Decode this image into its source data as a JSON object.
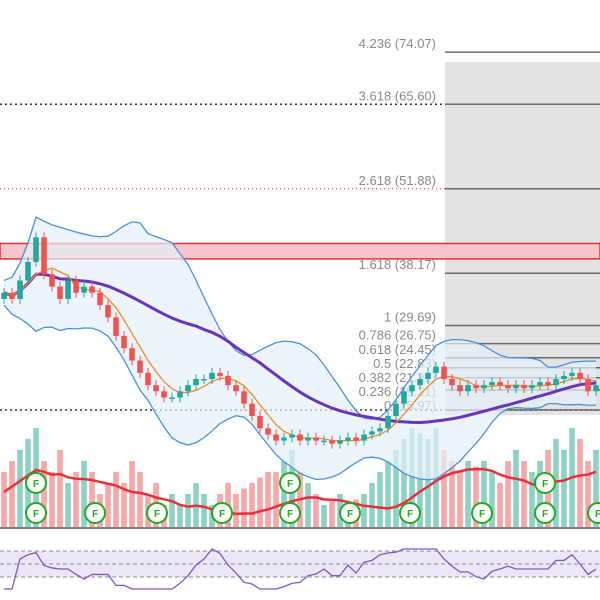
{
  "chart_data": {
    "type": "candlestick",
    "title": "",
    "fib_levels": [
      {
        "ratio": "4.236",
        "price": 74.07,
        "label": "4.236 (74.07)"
      },
      {
        "ratio": "3.618",
        "price": 65.6,
        "label": "3.618 (65.60)"
      },
      {
        "ratio": "2.618",
        "price": 51.88,
        "label": "2.618 (51.88)"
      },
      {
        "ratio": "1.618",
        "price": 38.17,
        "label": "1.618 (38.17)"
      },
      {
        "ratio": "1",
        "price": 29.69,
        "label": "1 (29.69)"
      },
      {
        "ratio": "0.786",
        "price": 26.75,
        "label": "0.786 (26.75)"
      },
      {
        "ratio": "0.618",
        "price": 24.45,
        "label": "0.618 (24.45)"
      },
      {
        "ratio": "0.5",
        "price": 22.83,
        "label": "0.5 (22.83)"
      },
      {
        "ratio": "0.382",
        "price": 21.21,
        "label": "0.382 (21.21)"
      },
      {
        "ratio": "0.236",
        "price": 19.21,
        "label": "0.236 (19.21)"
      },
      {
        "ratio": "0",
        "price": 15.97,
        "label": "0 (15.97)"
      }
    ],
    "resistance_zone": [
      40.5,
      43.0
    ],
    "closes": [
      35,
      34,
      37,
      40,
      44,
      38,
      36,
      34,
      37,
      35,
      36,
      35,
      33,
      31,
      28,
      26,
      24,
      22,
      20,
      19,
      18,
      18,
      19,
      20,
      21,
      21,
      22,
      21.5,
      20,
      19,
      17,
      15,
      13,
      12,
      11,
      11.5,
      12,
      11,
      11.5,
      11,
      11,
      10.5,
      11,
      11.5,
      11,
      12,
      12.5,
      13,
      15,
      17,
      19,
      20,
      21,
      22,
      23,
      21,
      20,
      19,
      20,
      19.5,
      20,
      20.5,
      20,
      19.5,
      20,
      19.5,
      20,
      20.5,
      20,
      21,
      21.5,
      22,
      21,
      19,
      20
    ],
    "volumes": [
      0.5,
      0.6,
      0.7,
      0.8,
      0.9,
      0.6,
      0.5,
      0.7,
      0.4,
      0.5,
      0.6,
      0.5,
      0.3,
      0.4,
      0.5,
      0.4,
      0.6,
      0.5,
      0.3,
      0.4,
      0.2,
      0.3,
      0.2,
      0.3,
      0.4,
      0.3,
      0.2,
      0.3,
      0.4,
      0.3,
      0.35,
      0.4,
      0.45,
      0.5,
      0.5,
      0.6,
      0.7,
      0.5,
      0.4,
      0.3,
      0.2,
      0.25,
      0.3,
      0.2,
      0.25,
      0.3,
      0.4,
      0.5,
      0.6,
      0.7,
      0.8,
      0.9,
      0.85,
      0.8,
      0.9,
      0.7,
      0.6,
      0.5,
      0.6,
      0.55,
      0.6,
      0.5,
      0.4,
      0.6,
      0.7,
      0.6,
      0.5,
      0.6,
      0.7,
      0.8,
      0.7,
      0.9,
      0.8,
      0.6,
      0.7
    ],
    "markers": {
      "label": "F"
    }
  },
  "colors": {
    "up": "#26a69a",
    "down": "#ef5350",
    "vol_up": "#8fd1c5",
    "vol_down": "#f7a9a9",
    "bb": "#4a90d9",
    "ma_long": "#6a35b8",
    "ma_short": "#f08a24",
    "vol_ma": "#e8303c",
    "rsi": "#7e57c2"
  }
}
